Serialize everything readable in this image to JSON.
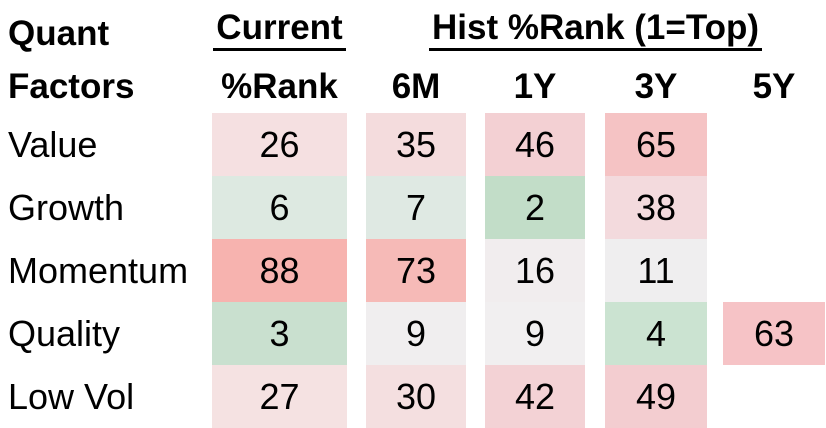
{
  "title": {
    "line1": "Quant",
    "line2": "Factors"
  },
  "header": {
    "current_group_label": "Current",
    "current_sub_label": "%Rank",
    "hist_group_label": "Hist %Rank (1=Top)",
    "period_labels": [
      "6M",
      "1Y",
      "3Y",
      "5Y"
    ]
  },
  "table": {
    "rows": [
      {
        "label": "Value",
        "cells": [
          {
            "v": "26",
            "bg": "#f5e0e1"
          },
          {
            "v": "35",
            "bg": "#f4dcdd"
          },
          {
            "v": "46",
            "bg": "#f3d0d3"
          },
          {
            "v": "65",
            "bg": "#f5c3c4"
          },
          {
            "v": "",
            "bg": "transparent"
          }
        ]
      },
      {
        "label": "Growth",
        "cells": [
          {
            "v": "6",
            "bg": "#dde9e1"
          },
          {
            "v": "7",
            "bg": "#dfe9e3"
          },
          {
            "v": "2",
            "bg": "#c2ddc8"
          },
          {
            "v": "38",
            "bg": "#f3dadd"
          },
          {
            "v": "",
            "bg": "transparent"
          }
        ]
      },
      {
        "label": "Momentum",
        "cells": [
          {
            "v": "88",
            "bg": "#f7b3af"
          },
          {
            "v": "73",
            "bg": "#f6bab7"
          },
          {
            "v": "16",
            "bg": "#f1edee"
          },
          {
            "v": "11",
            "bg": "#efeeef"
          },
          {
            "v": "",
            "bg": "transparent"
          }
        ]
      },
      {
        "label": "Quality",
        "cells": [
          {
            "v": "3",
            "bg": "#c9e0cf"
          },
          {
            "v": "9",
            "bg": "#f0eeef"
          },
          {
            "v": "9",
            "bg": "#f1eff0"
          },
          {
            "v": "4",
            "bg": "#cbe3d1"
          },
          {
            "v": "63",
            "bg": "#f6c3c6"
          }
        ]
      },
      {
        "label": "Low Vol",
        "cells": [
          {
            "v": "27",
            "bg": "#f5e2e2"
          },
          {
            "v": "30",
            "bg": "#f4dfe0"
          },
          {
            "v": "42",
            "bg": "#f3d2d5"
          },
          {
            "v": "49",
            "bg": "#f3cdd0"
          },
          {
            "v": "",
            "bg": "transparent"
          }
        ]
      }
    ]
  },
  "chart_data": {
    "type": "heatmap",
    "title": "Quant Factors",
    "rows": [
      "Value",
      "Growth",
      "Momentum",
      "Quality",
      "Low Vol"
    ],
    "columns": [
      "Current %Rank",
      "6M",
      "1Y",
      "3Y",
      "5Y"
    ],
    "values": [
      [
        26,
        35,
        46,
        65,
        null
      ],
      [
        6,
        7,
        2,
        38,
        null
      ],
      [
        88,
        73,
        16,
        11,
        null
      ],
      [
        3,
        9,
        9,
        4,
        63
      ],
      [
        27,
        30,
        42,
        49,
        null
      ]
    ],
    "scale_note": "1=Top",
    "color_scale": {
      "low_rank": "#c2ddc8",
      "mid": "#f0eeef",
      "high_rank": "#f7b3af"
    },
    "legend_position": "none",
    "grid": false
  }
}
